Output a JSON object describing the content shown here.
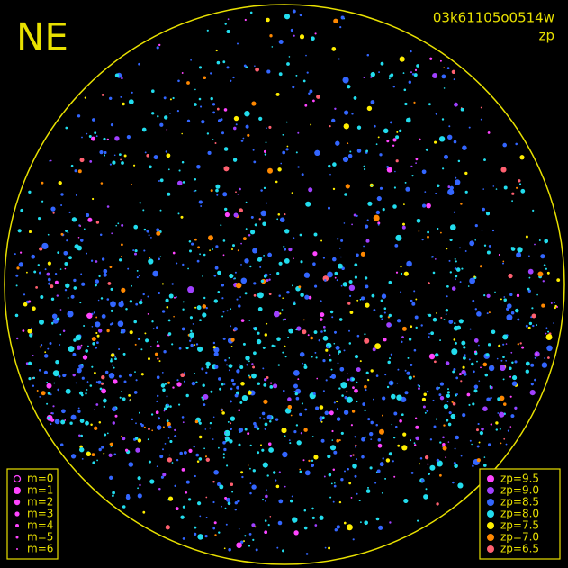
{
  "header": {
    "orientation": "NE",
    "frame_id": "03k61105o0514w",
    "metric": "zp"
  },
  "magnitude_legend": [
    "m=0",
    "m=1",
    "m=2",
    "m=3",
    "m=4",
    "m=5",
    "m=6"
  ],
  "zp_legend": [
    {
      "label": "zp=9.5",
      "color": "#ff44ff"
    },
    {
      "label": "zp=9.0",
      "color": "#a040ff"
    },
    {
      "label": "zp=8.5",
      "color": "#3366ff"
    },
    {
      "label": "zp=8.0",
      "color": "#22ddee"
    },
    {
      "label": "zp=7.5",
      "color": "#ffee00"
    },
    {
      "label": "zp=7.0",
      "color": "#ff8800"
    },
    {
      "label": "zp=6.5",
      "color": "#ff6070"
    }
  ],
  "legend_color_magnitude": "#ff44ff",
  "frame_color": "#e8e000"
}
